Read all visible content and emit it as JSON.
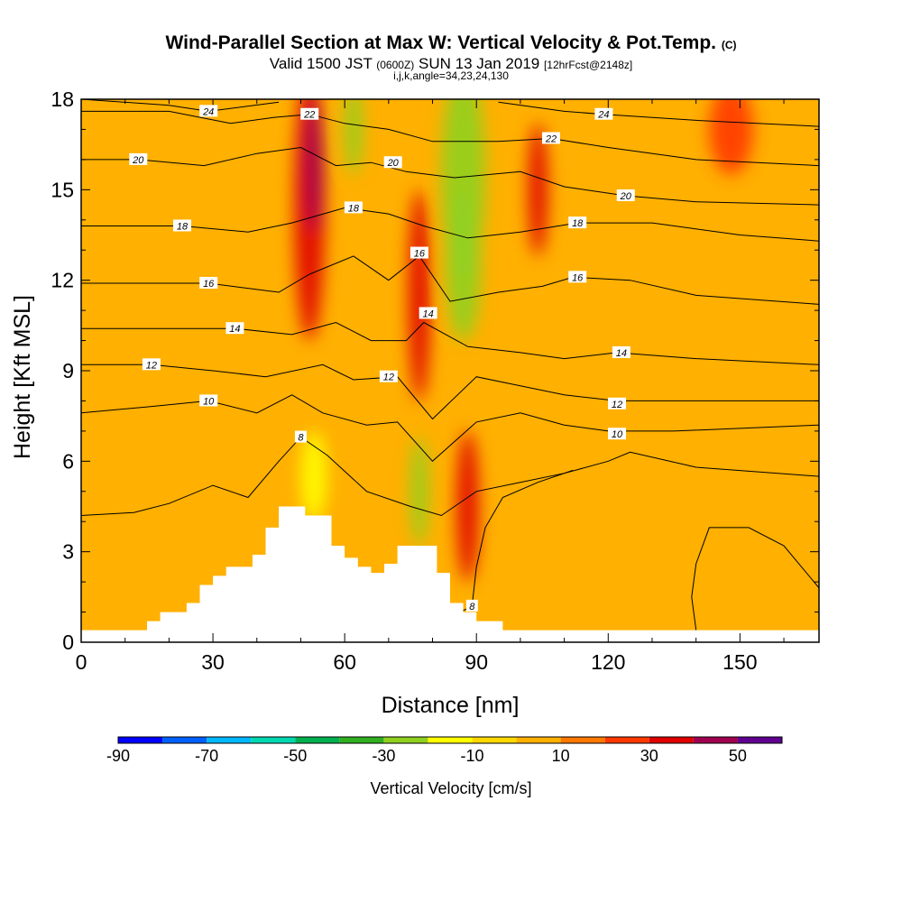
{
  "header": {
    "title_main": "Wind-Parallel Section at Max W: Vertical Velocity & Pot.Temp.",
    "title_mark": "(C)",
    "valid_prefix": "Valid 1500 JST",
    "valid_utc": "(0600Z)",
    "valid_date": "SUN 13 Jan 2019",
    "forecast": "[12hrFcst@2148z]",
    "indices": "i,j,k,angle=34,23,24,130"
  },
  "chart_data": {
    "type": "heatmap",
    "xlabel": "Distance [nm]",
    "ylabel": "Height [Kft MSL]",
    "xlim": [
      0,
      168
    ],
    "ylim": [
      0,
      18
    ],
    "x_ticks": [
      0,
      30,
      60,
      90,
      120,
      150
    ],
    "y_ticks": [
      0,
      3,
      6,
      9,
      12,
      15,
      18
    ],
    "colorbar": {
      "label": "Vertical Velocity [cm/s]",
      "min": -90,
      "max": 60,
      "step": 10,
      "tick_values": [
        -90,
        -70,
        -50,
        -30,
        -10,
        10,
        30,
        50
      ],
      "colors": [
        "#0000ff",
        "#0060ff",
        "#00b8ff",
        "#00d8b0",
        "#00b050",
        "#30b020",
        "#90d020",
        "#ffff00",
        "#ffd800",
        "#ffb000",
        "#ff7800",
        "#ff3800",
        "#e00000",
        "#a00050",
        "#600090"
      ]
    },
    "terrain_profile": [
      [
        0,
        0.4
      ],
      [
        15,
        0.4
      ],
      [
        15,
        0.7
      ],
      [
        18,
        0.7
      ],
      [
        18,
        1.0
      ],
      [
        24,
        1.0
      ],
      [
        24,
        1.3
      ],
      [
        27,
        1.3
      ],
      [
        27,
        1.9
      ],
      [
        30,
        1.9
      ],
      [
        30,
        2.2
      ],
      [
        33,
        2.2
      ],
      [
        33,
        2.5
      ],
      [
        39,
        2.5
      ],
      [
        39,
        2.9
      ],
      [
        42,
        2.9
      ],
      [
        42,
        3.8
      ],
      [
        45,
        3.8
      ],
      [
        45,
        4.5
      ],
      [
        51,
        4.5
      ],
      [
        51,
        4.2
      ],
      [
        57,
        4.2
      ],
      [
        57,
        3.2
      ],
      [
        60,
        3.2
      ],
      [
        60,
        2.8
      ],
      [
        63,
        2.8
      ],
      [
        63,
        2.5
      ],
      [
        66,
        2.5
      ],
      [
        66,
        2.3
      ],
      [
        69,
        2.3
      ],
      [
        69,
        2.6
      ],
      [
        72,
        2.6
      ],
      [
        72,
        3.2
      ],
      [
        75,
        3.2
      ],
      [
        75,
        3.2
      ],
      [
        81,
        3.2
      ],
      [
        81,
        2.3
      ],
      [
        84,
        2.3
      ],
      [
        84,
        1.3
      ],
      [
        87,
        1.3
      ],
      [
        87,
        1.0
      ],
      [
        90,
        1.0
      ],
      [
        90,
        0.7
      ],
      [
        96,
        0.7
      ],
      [
        96,
        0.4
      ],
      [
        168,
        0.4
      ]
    ],
    "wvel_features": [
      {
        "x": 52,
        "y": 14.5,
        "rx": 3.5,
        "ry": 4.5,
        "value": 30
      },
      {
        "x": 53,
        "y": 15.8,
        "rx": 2.0,
        "ry": 2.2,
        "value": 40
      },
      {
        "x": 77,
        "y": 11.5,
        "rx": 2.5,
        "ry": 3.5,
        "value": 30
      },
      {
        "x": 88,
        "y": 4.5,
        "rx": 2.5,
        "ry": 2.5,
        "value": 30
      },
      {
        "x": 87,
        "y": 15.5,
        "rx": 5,
        "ry": 3.5,
        "value": -30
      },
      {
        "x": 87,
        "y": 12.5,
        "rx": 4,
        "ry": 2.5,
        "value": -30
      },
      {
        "x": 77,
        "y": 5.0,
        "rx": 2,
        "ry": 1.8,
        "value": -30
      },
      {
        "x": 62,
        "y": 17.0,
        "rx": 2,
        "ry": 1.5,
        "value": -30
      },
      {
        "x": 104,
        "y": 15,
        "rx": 2.2,
        "ry": 2.2,
        "value": 30
      },
      {
        "x": 53,
        "y": 5.5,
        "rx": 3,
        "ry": 1.5,
        "value": -20
      },
      {
        "x": 148,
        "y": 17,
        "rx": 5,
        "ry": 1.5,
        "value": 20
      }
    ],
    "theta_contours": [
      {
        "label": "8",
        "label_at": [
          50,
          6.8
        ],
        "points": [
          [
            0,
            4.2
          ],
          [
            12,
            4.3
          ],
          [
            20,
            4.6
          ],
          [
            30,
            5.2
          ],
          [
            38,
            4.8
          ],
          [
            45,
            6.0
          ],
          [
            50,
            6.8
          ],
          [
            56,
            6.2
          ],
          [
            65,
            5.0
          ],
          [
            75,
            4.5
          ],
          [
            82,
            4.2
          ],
          [
            90,
            5.0
          ],
          [
            100,
            5.3
          ],
          [
            110,
            5.6
          ],
          [
            120,
            6.0
          ],
          [
            125,
            6.3
          ],
          [
            140,
            5.8
          ],
          [
            168,
            5.5
          ]
        ]
      },
      {
        "label": "10",
        "label_at": [
          29,
          8.0
        ],
        "points": [
          [
            0,
            7.6
          ],
          [
            15,
            7.8
          ],
          [
            29,
            8.0
          ],
          [
            40,
            7.6
          ],
          [
            48,
            8.2
          ],
          [
            55,
            7.6
          ],
          [
            65,
            7.2
          ],
          [
            72,
            7.3
          ],
          [
            80,
            6.0
          ],
          [
            90,
            7.3
          ],
          [
            100,
            7.6
          ],
          [
            110,
            7.2
          ],
          [
            120,
            7.0
          ],
          [
            135,
            7.0
          ],
          [
            168,
            7.2
          ]
        ]
      },
      {
        "label": "10",
        "label_at": [
          122,
          6.9
        ],
        "points": []
      },
      {
        "label": "12",
        "label_at": [
          16,
          9.2
        ],
        "points": [
          [
            0,
            9.2
          ],
          [
            16,
            9.2
          ],
          [
            30,
            9.0
          ],
          [
            42,
            8.8
          ],
          [
            55,
            9.2
          ],
          [
            62,
            8.7
          ],
          [
            72,
            8.8
          ],
          [
            80,
            7.4
          ],
          [
            90,
            8.8
          ],
          [
            100,
            8.5
          ],
          [
            110,
            8.2
          ],
          [
            122,
            8.0
          ],
          [
            140,
            8.0
          ],
          [
            168,
            8.0
          ]
        ]
      },
      {
        "label": "12",
        "label_at": [
          70,
          8.8
        ],
        "points": []
      },
      {
        "label": "12",
        "label_at": [
          122,
          7.9
        ],
        "points": []
      },
      {
        "label": "14",
        "label_at": [
          35,
          10.4
        ],
        "points": [
          [
            0,
            10.4
          ],
          [
            20,
            10.4
          ],
          [
            35,
            10.4
          ],
          [
            48,
            10.2
          ],
          [
            58,
            10.6
          ],
          [
            66,
            10.0
          ],
          [
            74,
            10.0
          ],
          [
            78,
            10.6
          ],
          [
            88,
            9.8
          ],
          [
            100,
            9.6
          ],
          [
            110,
            9.4
          ],
          [
            122,
            9.6
          ],
          [
            140,
            9.4
          ],
          [
            168,
            9.2
          ]
        ]
      },
      {
        "label": "14",
        "label_at": [
          79,
          10.9
        ],
        "points": []
      },
      {
        "label": "14",
        "label_at": [
          123,
          9.6
        ],
        "points": []
      },
      {
        "label": "16",
        "label_at": [
          29,
          11.9
        ],
        "points": [
          [
            0,
            11.9
          ],
          [
            15,
            11.9
          ],
          [
            29,
            11.9
          ],
          [
            45,
            11.6
          ],
          [
            52,
            12.2
          ],
          [
            62,
            12.8
          ],
          [
            70,
            12.0
          ],
          [
            77,
            12.8
          ],
          [
            84,
            11.3
          ],
          [
            95,
            11.6
          ],
          [
            105,
            11.8
          ],
          [
            112,
            12.1
          ],
          [
            125,
            12.0
          ],
          [
            140,
            11.5
          ],
          [
            168,
            11.2
          ]
        ]
      },
      {
        "label": "16",
        "label_at": [
          77,
          12.9
        ],
        "points": []
      },
      {
        "label": "16",
        "label_at": [
          113,
          12.1
        ],
        "points": []
      },
      {
        "label": "18",
        "label_at": [
          23,
          13.8
        ],
        "points": [
          [
            0,
            13.8
          ],
          [
            23,
            13.8
          ],
          [
            38,
            13.6
          ],
          [
            48,
            13.9
          ],
          [
            60,
            14.4
          ],
          [
            70,
            14.2
          ],
          [
            78,
            13.8
          ],
          [
            88,
            13.4
          ],
          [
            100,
            13.6
          ],
          [
            113,
            13.9
          ],
          [
            130,
            13.9
          ],
          [
            150,
            13.5
          ],
          [
            168,
            13.3
          ]
        ]
      },
      {
        "label": "18",
        "label_at": [
          62,
          14.4
        ],
        "points": []
      },
      {
        "label": "18",
        "label_at": [
          113,
          13.9
        ],
        "points": []
      },
      {
        "label": "20",
        "label_at": [
          13,
          16.0
        ],
        "points": [
          [
            0,
            16.0
          ],
          [
            13,
            16.0
          ],
          [
            28,
            15.8
          ],
          [
            40,
            16.2
          ],
          [
            50,
            16.4
          ],
          [
            58,
            15.8
          ],
          [
            66,
            15.9
          ],
          [
            74,
            15.6
          ],
          [
            85,
            15.4
          ],
          [
            100,
            15.6
          ],
          [
            110,
            15.1
          ],
          [
            124,
            14.8
          ],
          [
            140,
            14.6
          ],
          [
            168,
            14.5
          ]
        ]
      },
      {
        "label": "20",
        "label_at": [
          71,
          15.9
        ],
        "points": []
      },
      {
        "label": "20",
        "label_at": [
          124,
          14.8
        ],
        "points": []
      },
      {
        "label": "22",
        "label_at": [
          52,
          17.5
        ],
        "points": [
          [
            0,
            17.6
          ],
          [
            20,
            17.6
          ],
          [
            34,
            17.2
          ],
          [
            44,
            17.4
          ],
          [
            52,
            17.5
          ],
          [
            60,
            17.2
          ],
          [
            70,
            17.0
          ],
          [
            80,
            16.6
          ],
          [
            95,
            16.6
          ],
          [
            107,
            16.7
          ],
          [
            120,
            16.4
          ],
          [
            140,
            16.0
          ],
          [
            168,
            15.8
          ]
        ]
      },
      {
        "label": "22",
        "label_at": [
          107,
          16.7
        ],
        "points": []
      },
      {
        "label": "24",
        "label_at": [
          29,
          17.6
        ],
        "points": [
          [
            0,
            18.0
          ],
          [
            20,
            17.8
          ],
          [
            29,
            17.6
          ],
          [
            45,
            17.9
          ]
        ]
      },
      {
        "label": "24",
        "label_at": [
          119,
          17.5
        ],
        "points": [
          [
            95,
            17.9
          ],
          [
            110,
            17.6
          ],
          [
            119,
            17.5
          ],
          [
            140,
            17.3
          ],
          [
            168,
            17.1
          ]
        ]
      },
      {
        "label": "8",
        "label_at": [
          89,
          1.2
        ],
        "points": [
          [
            83,
            0.4
          ],
          [
            85,
            0.9
          ],
          [
            89,
            1.2
          ],
          [
            90,
            2.5
          ],
          [
            92,
            3.8
          ],
          [
            96,
            4.8
          ],
          [
            104,
            5.3
          ],
          [
            112,
            5.7
          ]
        ]
      },
      {
        "label": "",
        "label_at": [
          140,
          3.5
        ],
        "points": [
          [
            140,
            0.4
          ],
          [
            139,
            1.5
          ],
          [
            140,
            2.6
          ],
          [
            143,
            3.8
          ],
          [
            152,
            3.8
          ],
          [
            160,
            3.2
          ],
          [
            168,
            1.8
          ]
        ]
      }
    ]
  }
}
